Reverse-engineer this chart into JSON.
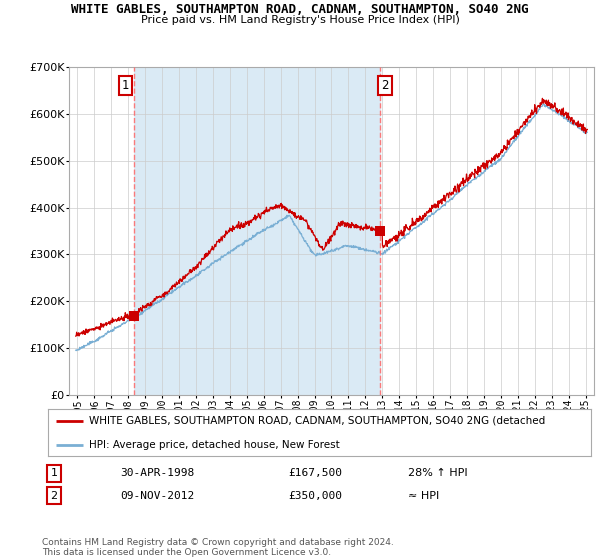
{
  "title_line1": "WHITE GABLES, SOUTHAMPTON ROAD, CADNAM, SOUTHAMPTON, SO40 2NG",
  "title_line2": "Price paid vs. HM Land Registry's House Price Index (HPI)",
  "ylim": [
    0,
    700000
  ],
  "yticks": [
    0,
    100000,
    200000,
    300000,
    400000,
    500000,
    600000,
    700000
  ],
  "transaction1": {
    "date_num": 1998.33,
    "price": 167500,
    "label": "1"
  },
  "transaction2": {
    "date_num": 2012.86,
    "price": 350000,
    "label": "2"
  },
  "legend_red": "WHITE GABLES, SOUTHAMPTON ROAD, CADNAM, SOUTHAMPTON, SO40 2NG (detached",
  "legend_blue": "HPI: Average price, detached house, New Forest",
  "table_row1": [
    "1",
    "30-APR-1998",
    "£167,500",
    "28% ↑ HPI"
  ],
  "table_row2": [
    "2",
    "09-NOV-2012",
    "£350,000",
    "≈ HPI"
  ],
  "footnote": "Contains HM Land Registry data © Crown copyright and database right 2024.\nThis data is licensed under the Open Government Licence v3.0.",
  "red_color": "#cc0000",
  "blue_color": "#7aafd4",
  "shade_color": "#daeaf5",
  "bg_color": "#ffffff",
  "grid_color": "#cccccc",
  "xtick_years": [
    1995,
    1996,
    1997,
    1998,
    1999,
    2000,
    2001,
    2002,
    2003,
    2004,
    2005,
    2006,
    2007,
    2008,
    2009,
    2010,
    2011,
    2012,
    2013,
    2014,
    2015,
    2016,
    2017,
    2018,
    2019,
    2020,
    2021,
    2022,
    2023,
    2024,
    2025
  ]
}
